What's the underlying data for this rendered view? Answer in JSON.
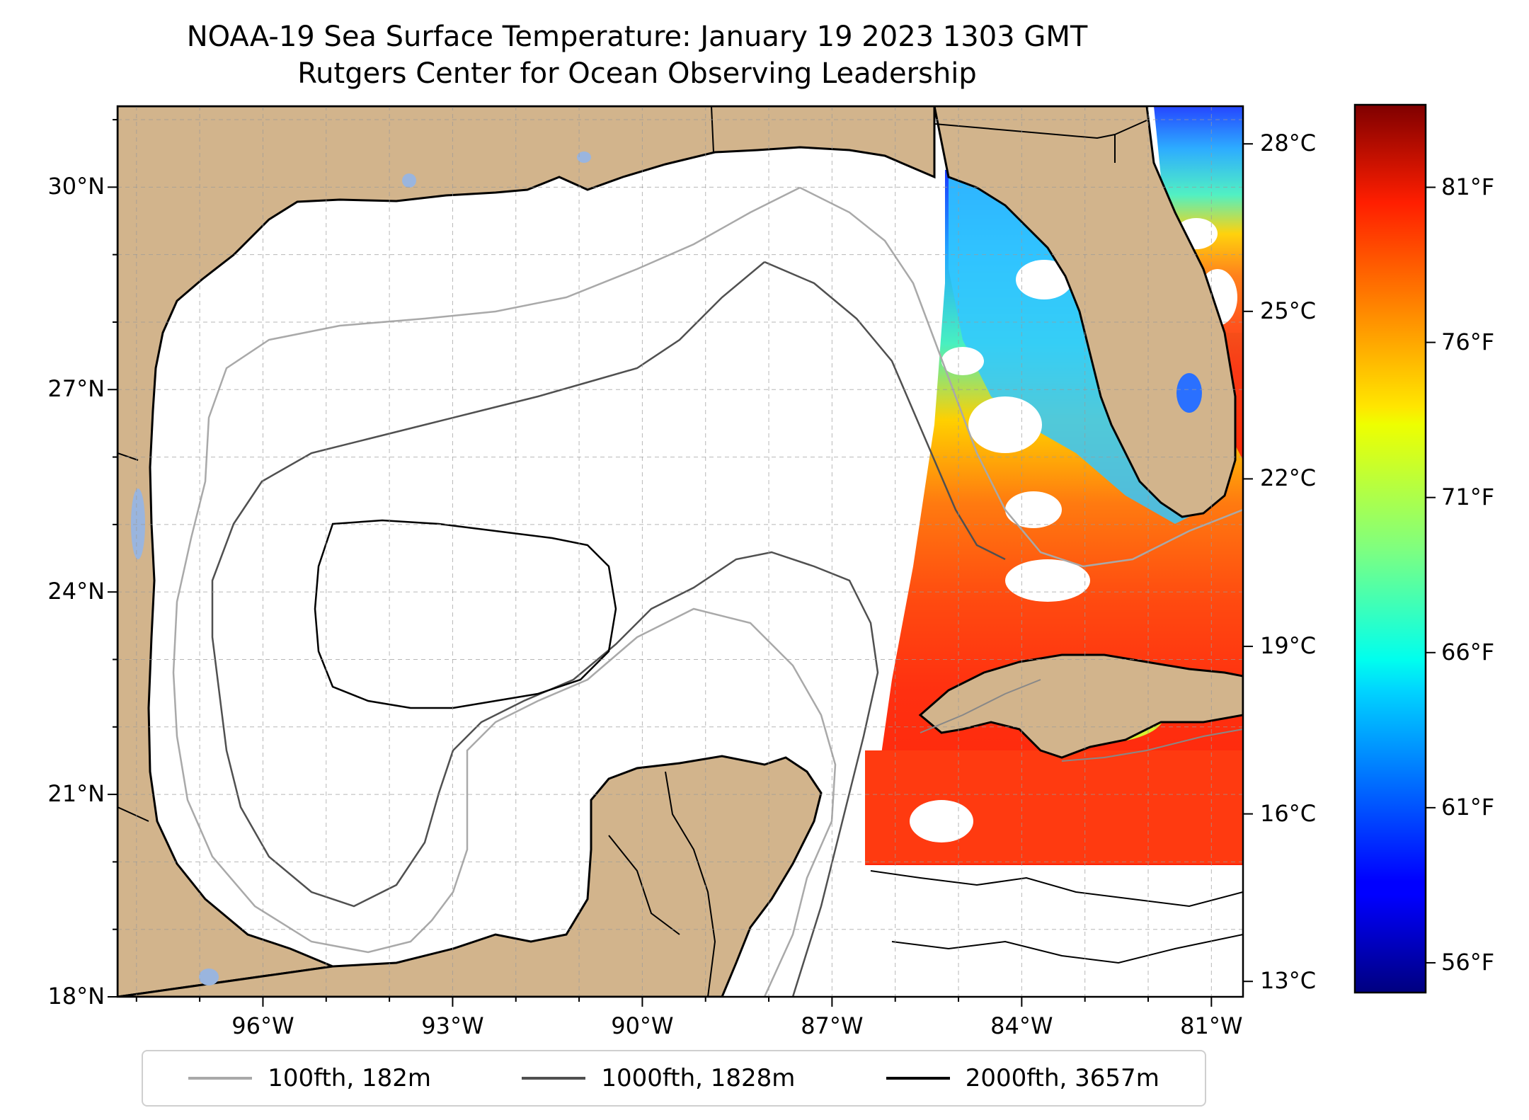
{
  "title": {
    "line1": "NOAA-19 Sea Surface Temperature: January 19 2023 1303 GMT",
    "line2": "Rutgers Center for Ocean Observing Leadership"
  },
  "map": {
    "lat_range": [
      18,
      31.2
    ],
    "lon_range": [
      -98.3,
      -80.5
    ],
    "lat_ticks": [
      {
        "value": 30,
        "label": "30°N"
      },
      {
        "value": 27,
        "label": "27°N"
      },
      {
        "value": 24,
        "label": "24°N"
      },
      {
        "value": 21,
        "label": "21°N"
      },
      {
        "value": 18,
        "label": "18°N"
      }
    ],
    "lon_ticks": [
      {
        "value": -96,
        "label": "96°W"
      },
      {
        "value": -93,
        "label": "93°W"
      },
      {
        "value": -90,
        "label": "90°W"
      },
      {
        "value": -87,
        "label": "87°W"
      },
      {
        "value": -84,
        "label": "84°W"
      },
      {
        "value": -81,
        "label": "81°W"
      }
    ],
    "land_color": "#d2b48c",
    "water_color": "#ffffff",
    "lake_color": "#9ab5de",
    "grid": true
  },
  "colorbar": {
    "celsius_ticks": [
      {
        "value": 28,
        "label": "28°C"
      },
      {
        "value": 25,
        "label": "25°C"
      },
      {
        "value": 22,
        "label": "22°C"
      },
      {
        "value": 19,
        "label": "19°C"
      },
      {
        "value": 16,
        "label": "16°C"
      },
      {
        "value": 13,
        "label": "13°C"
      }
    ],
    "fahrenheit_ticks": [
      {
        "value": 81,
        "label": "81°F"
      },
      {
        "value": 76,
        "label": "76°F"
      },
      {
        "value": 71,
        "label": "71°F"
      },
      {
        "value": 66,
        "label": "66°F"
      },
      {
        "value": 61,
        "label": "61°F"
      },
      {
        "value": 56,
        "label": "56°F"
      }
    ],
    "range_c": [
      12.8,
      28.7
    ],
    "colormap": "jet"
  },
  "legend": {
    "items": [
      {
        "label": "100fth, 182m",
        "color": "#a9a9a9"
      },
      {
        "label": "1000fth, 1828m",
        "color": "#505050"
      },
      {
        "label": "2000fth, 3657m",
        "color": "#000000"
      }
    ]
  }
}
